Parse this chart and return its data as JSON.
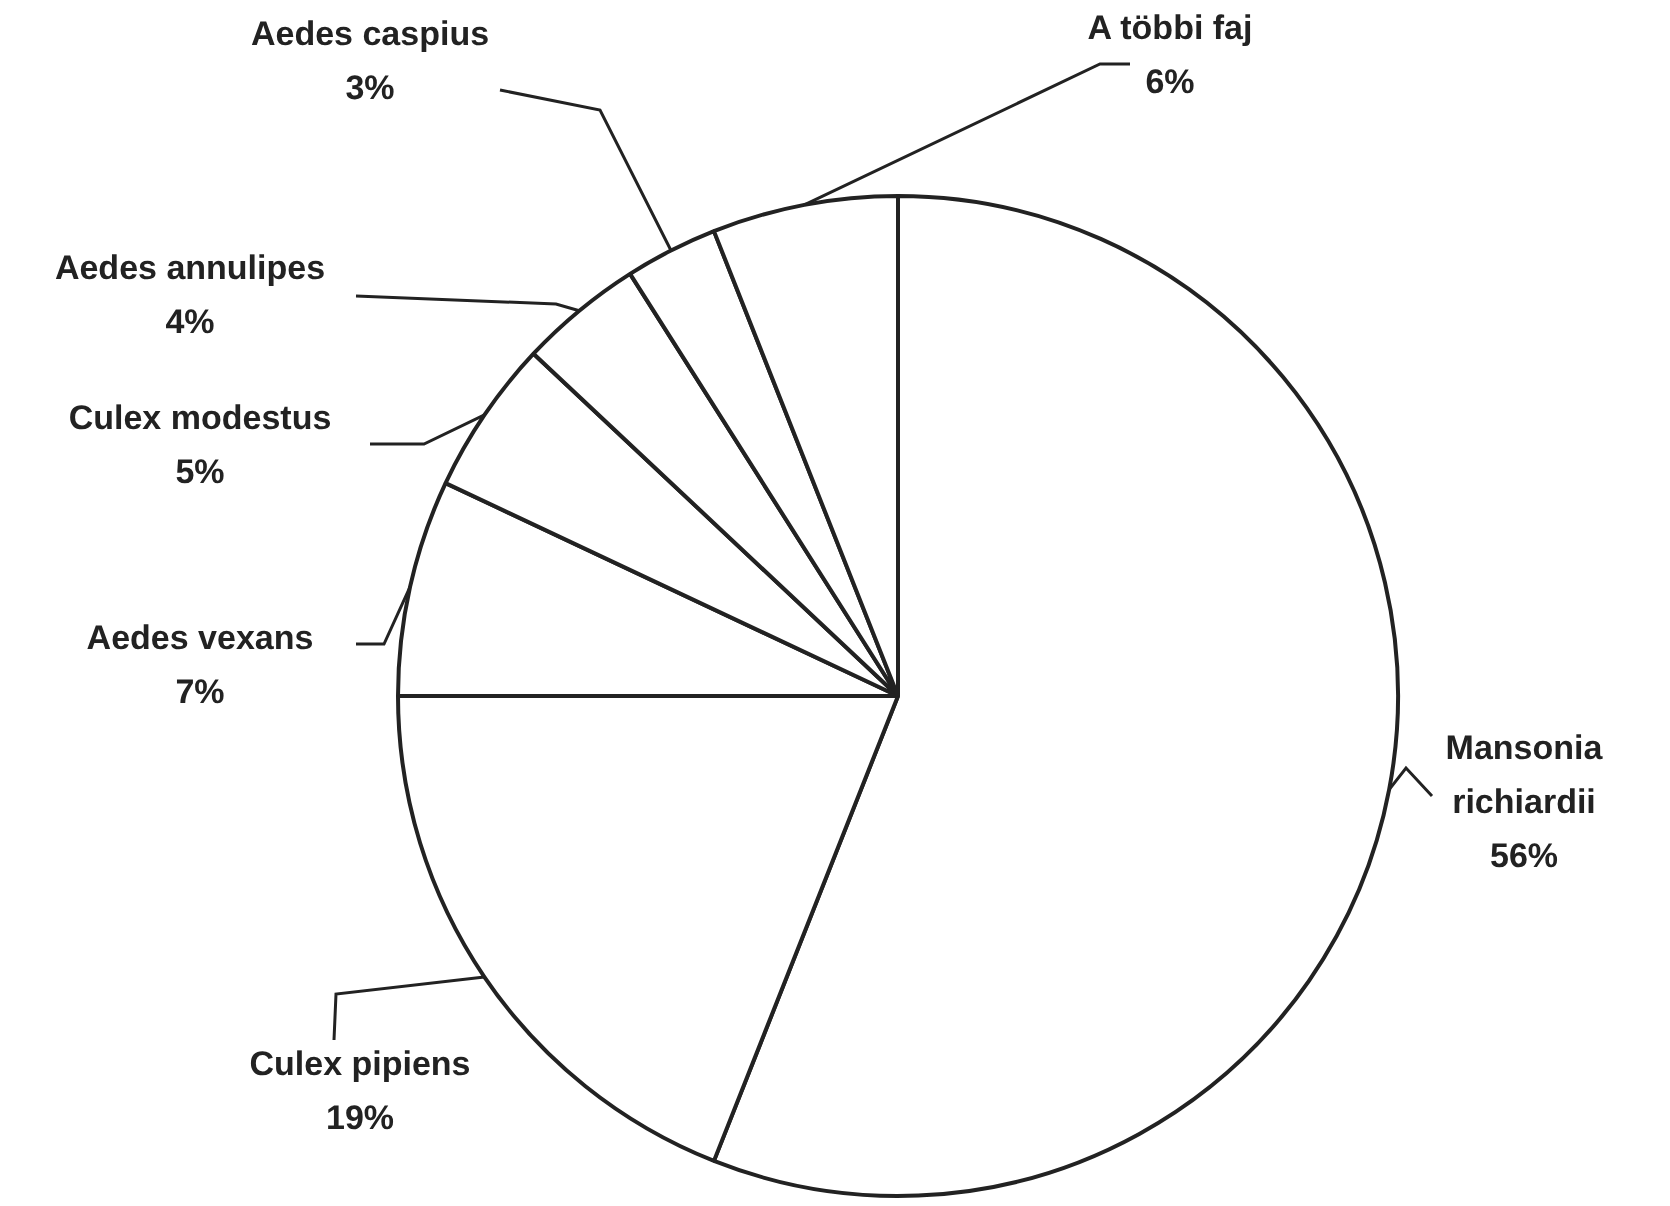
{
  "chart_data": {
    "type": "pie",
    "categories": [
      "Mansonia richiardii",
      "Culex pipiens",
      "Aedes vexans",
      "Culex modestus",
      "Aedes annulipes",
      "Aedes caspius",
      "A többi faj"
    ],
    "values": [
      56,
      19,
      7,
      5,
      4,
      3,
      6
    ],
    "value_labels": [
      "56%",
      "19%",
      "7%",
      "5%",
      "4%",
      "3%",
      "6%"
    ],
    "colors": [
      "#ffffff",
      "#ffffff",
      "#ffffff",
      "#ffffff",
      "#ffffff",
      "#ffffff",
      "#ffffff"
    ]
  }
}
